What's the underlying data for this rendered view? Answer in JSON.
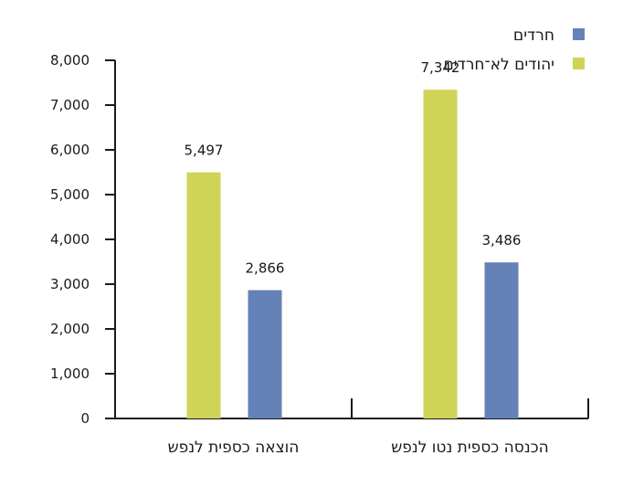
{
  "chart_data": {
    "type": "bar",
    "categories": [
      "הכנסה כספית נטו לנפש",
      "הוצאה כספית לנפש"
    ],
    "series": [
      {
        "name": "יהודים לא־חרדים",
        "values": [
          7342,
          5497
        ],
        "value_labels": [
          "7,342",
          "5,497"
        ],
        "color": "#CFD357"
      },
      {
        "name": "חרדים",
        "values": [
          3486,
          2866
        ],
        "value_labels": [
          "3,486",
          "2,866"
        ],
        "color": "#6582B8"
      }
    ],
    "ylim": [
      0,
      8000
    ],
    "yticks": [
      0,
      1000,
      2000,
      3000,
      4000,
      5000,
      6000,
      7000,
      8000
    ],
    "ytick_labels": [
      "0",
      "1,000",
      "2,000",
      "3,000",
      "4,000",
      "5,000",
      "6,000",
      "7,000",
      "8,000"
    ],
    "legend": {
      "position": "top-right",
      "items": [
        {
          "label": "חרדים",
          "color": "#6582B8"
        },
        {
          "label": "יהודים לא־חרדים",
          "color": "#CFD357"
        }
      ]
    },
    "grid": false
  }
}
